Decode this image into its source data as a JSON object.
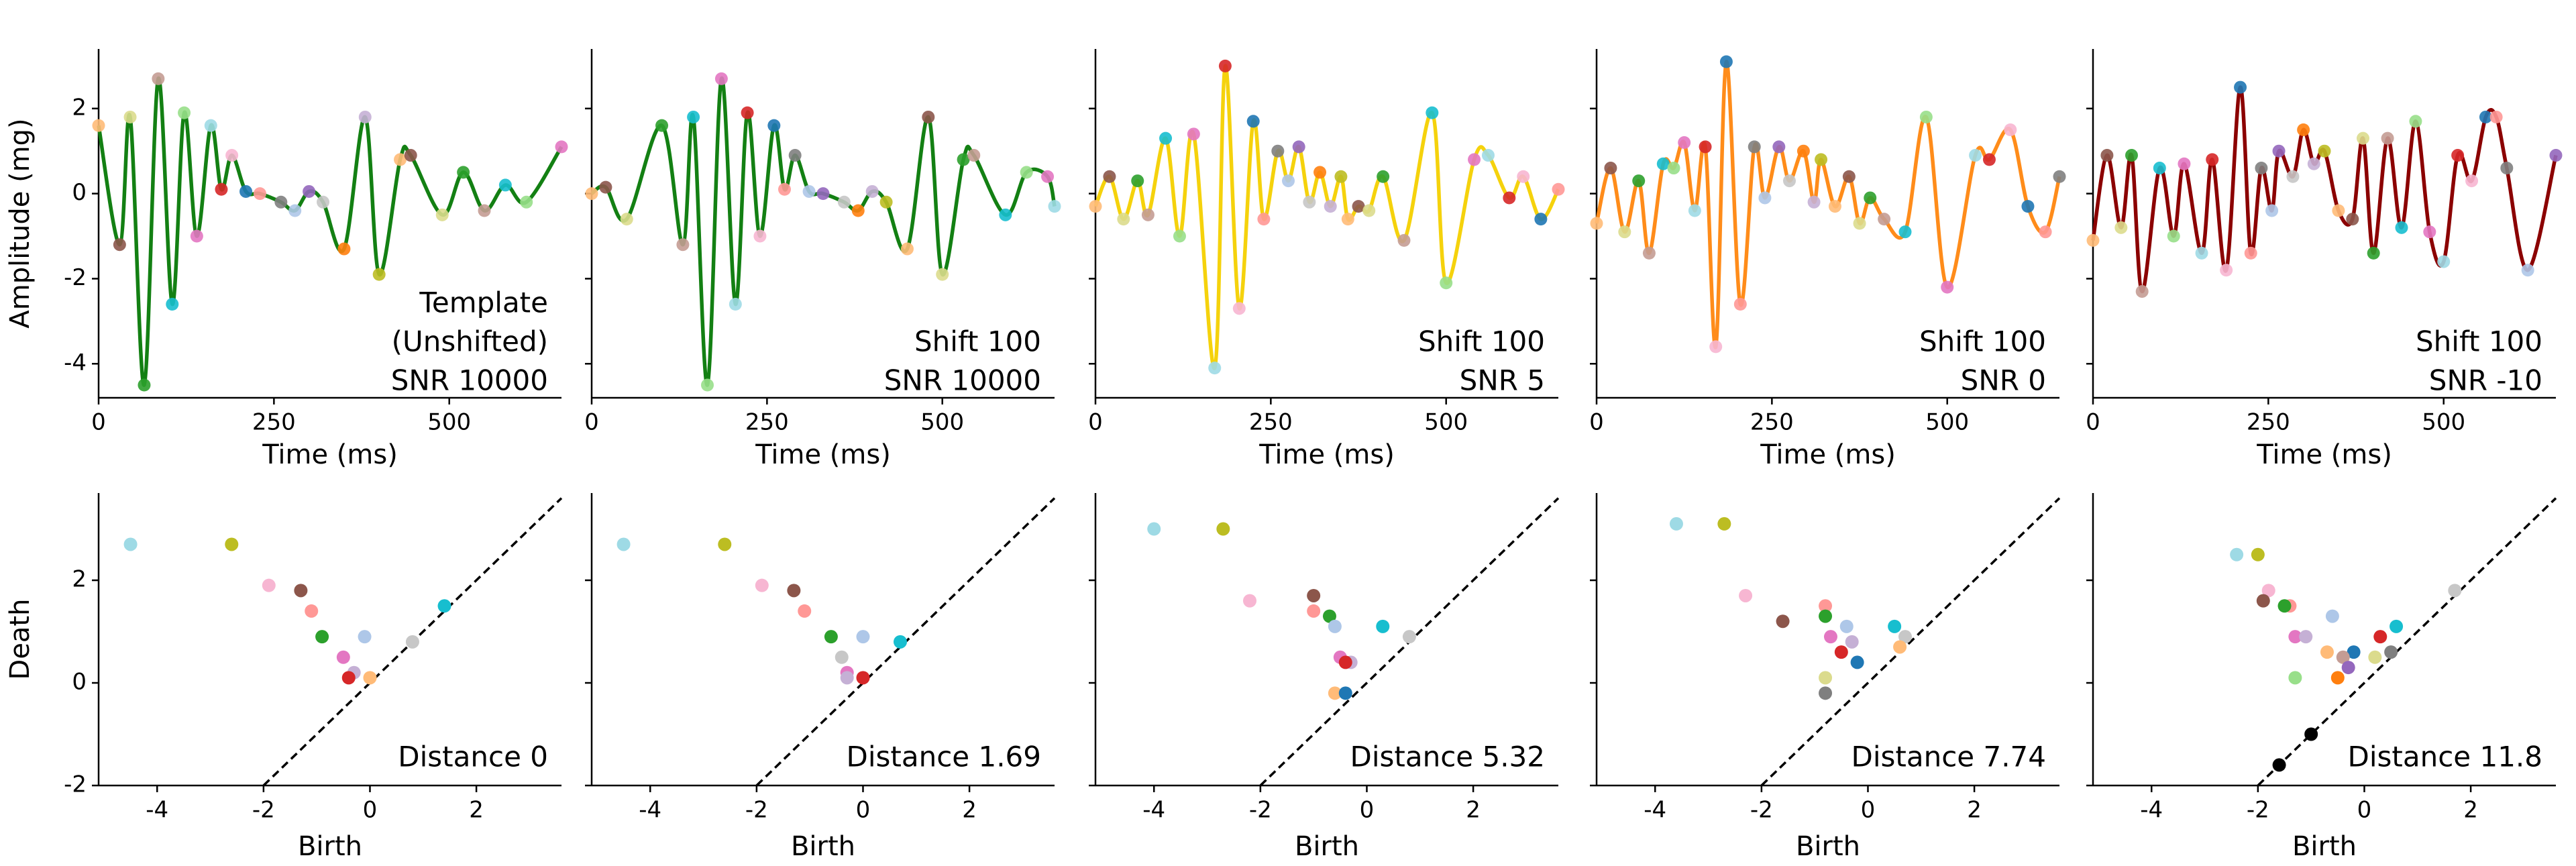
{
  "palette": [
    "#1f77b4",
    "#aec7e8",
    "#ff7f0e",
    "#ffbb78",
    "#2ca02c",
    "#98df8a",
    "#d62728",
    "#ff9896",
    "#9467bd",
    "#c5b0d5",
    "#8c564b",
    "#c49c94",
    "#e377c2",
    "#f7b6d2",
    "#7f7f7f",
    "#c7c7c7",
    "#bcbd22",
    "#dbdb8d",
    "#17becf",
    "#9edae5"
  ],
  "chart_data": [
    {
      "type": "line",
      "color": "#138013",
      "xlabel": "Time (ms)",
      "ylabel": "Amplitude (mg)",
      "annotation": [
        "Template",
        "(Unshifted)",
        "SNR 10000"
      ],
      "xlim": [
        0,
        660
      ],
      "ylim": [
        -4.8,
        3.4
      ],
      "xticks": [
        0,
        250,
        500
      ],
      "yticks": [
        -4,
        -2,
        0,
        2
      ],
      "ytick_labels": true,
      "x": [
        0,
        30,
        45,
        65,
        85,
        105,
        122,
        140,
        160,
        175,
        190,
        210,
        230,
        260,
        280,
        300,
        320,
        350,
        380,
        400,
        430,
        445,
        490,
        520,
        550,
        580,
        610,
        660
      ],
      "values": [
        1.6,
        -1.2,
        1.8,
        -4.5,
        2.7,
        -2.6,
        1.9,
        -1.0,
        1.6,
        0.1,
        0.9,
        0.05,
        0.0,
        -0.2,
        -0.4,
        0.05,
        -0.2,
        -1.3,
        1.8,
        -1.9,
        0.8,
        0.9,
        -0.5,
        0.5,
        -0.4,
        0.2,
        -0.2,
        1.1
      ]
    },
    {
      "type": "line",
      "color": "#138013",
      "xlabel": "Time (ms)",
      "annotation": [
        "Shift 100",
        "SNR 10000"
      ],
      "xlim": [
        0,
        660
      ],
      "ylim": [
        -4.8,
        3.4
      ],
      "xticks": [
        0,
        250,
        500
      ],
      "yticks": [
        -4,
        -2,
        0,
        2
      ],
      "ytick_labels": false,
      "x": [
        0,
        20,
        50,
        100,
        130,
        145,
        165,
        185,
        205,
        222,
        240,
        260,
        275,
        290,
        310,
        330,
        360,
        380,
        400,
        420,
        450,
        480,
        500,
        530,
        545,
        590,
        620,
        650,
        660
      ],
      "values": [
        0.0,
        0.15,
        -0.6,
        1.6,
        -1.2,
        1.8,
        -4.5,
        2.7,
        -2.6,
        1.9,
        -1.0,
        1.6,
        0.1,
        0.9,
        0.05,
        0.0,
        -0.2,
        -0.4,
        0.05,
        -0.2,
        -1.3,
        1.8,
        -1.9,
        0.8,
        0.9,
        -0.5,
        0.5,
        0.4,
        -0.3
      ]
    },
    {
      "type": "line",
      "color": "#f5d20c",
      "xlabel": "Time (ms)",
      "annotation": [
        "Shift 100",
        "SNR 5"
      ],
      "xlim": [
        0,
        660
      ],
      "ylim": [
        -4.8,
        3.4
      ],
      "xticks": [
        0,
        250,
        500
      ],
      "yticks": [
        -4,
        -2,
        0,
        2
      ],
      "ytick_labels": false,
      "x": [
        0,
        20,
        40,
        60,
        75,
        100,
        120,
        140,
        170,
        185,
        205,
        225,
        240,
        260,
        275,
        290,
        305,
        320,
        335,
        350,
        360,
        375,
        390,
        410,
        440,
        480,
        500,
        540,
        560,
        590,
        610,
        635,
        660
      ],
      "values": [
        -0.3,
        0.4,
        -0.6,
        0.3,
        -0.5,
        1.3,
        -1.0,
        1.4,
        -4.1,
        3.0,
        -2.7,
        1.7,
        -0.6,
        1.0,
        0.3,
        1.1,
        -0.2,
        0.5,
        -0.3,
        0.4,
        -0.6,
        -0.3,
        -0.4,
        0.4,
        -1.1,
        1.9,
        -2.1,
        0.8,
        0.9,
        -0.1,
        0.4,
        -0.6,
        0.1
      ]
    },
    {
      "type": "line",
      "color": "#ff8c1a",
      "xlabel": "Time (ms)",
      "annotation": [
        "Shift 100",
        "SNR 0"
      ],
      "xlim": [
        0,
        660
      ],
      "ylim": [
        -4.8,
        3.4
      ],
      "xticks": [
        0,
        250,
        500
      ],
      "yticks": [
        -4,
        -2,
        0,
        2
      ],
      "ytick_labels": false,
      "x": [
        0,
        20,
        40,
        60,
        75,
        95,
        110,
        125,
        140,
        155,
        170,
        185,
        205,
        225,
        240,
        260,
        275,
        295,
        310,
        320,
        340,
        360,
        375,
        390,
        410,
        440,
        470,
        500,
        540,
        560,
        590,
        615,
        640,
        660
      ],
      "values": [
        -0.7,
        0.6,
        -0.9,
        0.3,
        -1.4,
        0.7,
        0.6,
        1.2,
        -0.4,
        1.1,
        -3.6,
        3.1,
        -2.6,
        1.1,
        -0.1,
        1.1,
        0.3,
        1.0,
        -0.2,
        0.8,
        -0.3,
        0.4,
        -0.7,
        -0.1,
        -0.6,
        -0.9,
        1.8,
        -2.2,
        0.9,
        0.8,
        1.5,
        -0.3,
        -0.9,
        0.4
      ]
    },
    {
      "type": "line",
      "color": "#8b0000",
      "xlabel": "Time (ms)",
      "annotation": [
        "Shift 100",
        "SNR -10"
      ],
      "xlim": [
        0,
        660
      ],
      "ylim": [
        -4.8,
        3.4
      ],
      "xticks": [
        0,
        250,
        500
      ],
      "yticks": [
        -4,
        -2,
        0,
        2
      ],
      "ytick_labels": false,
      "x": [
        0,
        20,
        40,
        55,
        70,
        95,
        115,
        130,
        155,
        170,
        190,
        210,
        225,
        240,
        255,
        265,
        285,
        300,
        315,
        330,
        350,
        370,
        385,
        400,
        420,
        440,
        460,
        480,
        500,
        520,
        540,
        560,
        575,
        590,
        620,
        660
      ],
      "values": [
        -1.1,
        0.9,
        -0.8,
        0.9,
        -2.3,
        0.6,
        -1.0,
        0.7,
        -1.4,
        0.8,
        -1.8,
        2.5,
        -1.4,
        0.6,
        -0.4,
        1.0,
        0.4,
        1.5,
        0.7,
        1.0,
        -0.4,
        -0.6,
        1.3,
        -1.4,
        1.3,
        -0.8,
        1.7,
        -0.9,
        -1.6,
        0.9,
        0.3,
        1.8,
        1.8,
        0.6,
        -1.8,
        0.9
      ]
    },
    {
      "type": "scatter",
      "diagonal": true,
      "xlabel": "Birth",
      "ylabel": "Death",
      "annotation": [
        "Distance 0"
      ],
      "xlim": [
        -5.1,
        3.6
      ],
      "ylim": [
        -2,
        3.7
      ],
      "xticks": [
        -4,
        -2,
        0,
        2
      ],
      "yticks": [
        -2,
        0,
        2
      ],
      "ytick_labels": true,
      "x": [
        -4.5,
        -2.6,
        -1.9,
        -1.3,
        -1.1,
        -0.9,
        -0.1,
        1.4,
        0.8,
        -0.5,
        -0.3,
        -0.4,
        0.0
      ],
      "y": [
        2.7,
        2.7,
        1.9,
        1.8,
        1.4,
        0.9,
        0.9,
        1.5,
        0.8,
        0.5,
        0.2,
        0.1,
        0.1
      ]
    },
    {
      "type": "scatter",
      "diagonal": true,
      "xlabel": "Birth",
      "annotation": [
        "Distance 1.69"
      ],
      "xlim": [
        -5.1,
        3.6
      ],
      "ylim": [
        -2,
        3.7
      ],
      "xticks": [
        -4,
        -2,
        0,
        2
      ],
      "yticks": [
        -2,
        0,
        2
      ],
      "ytick_labels": false,
      "x": [
        -4.5,
        -2.6,
        -1.9,
        -1.3,
        -1.1,
        -0.6,
        0.0,
        0.7,
        -0.4,
        -0.3,
        -0.3,
        0.0
      ],
      "y": [
        2.7,
        2.7,
        1.9,
        1.8,
        1.4,
        0.9,
        0.9,
        0.8,
        0.5,
        0.2,
        0.1,
        0.1
      ]
    },
    {
      "type": "scatter",
      "diagonal": true,
      "xlabel": "Birth",
      "annotation": [
        "Distance 5.32"
      ],
      "xlim": [
        -5.1,
        3.6
      ],
      "ylim": [
        -2,
        3.7
      ],
      "xticks": [
        -4,
        -2,
        0,
        2
      ],
      "yticks": [
        -2,
        0,
        2
      ],
      "ytick_labels": false,
      "x": [
        -4.0,
        -2.7,
        -2.2,
        -1.0,
        -1.0,
        -0.7,
        -0.6,
        0.3,
        0.8,
        -0.5,
        -0.3,
        -0.4,
        -0.6,
        -0.4
      ],
      "y": [
        3.0,
        3.0,
        1.6,
        1.7,
        1.4,
        1.3,
        1.1,
        1.1,
        0.9,
        0.5,
        0.4,
        0.4,
        -0.2,
        -0.2
      ]
    },
    {
      "type": "scatter",
      "diagonal": true,
      "xlabel": "Birth",
      "annotation": [
        "Distance 7.74"
      ],
      "xlim": [
        -5.1,
        3.6
      ],
      "ylim": [
        -2,
        3.7
      ],
      "xticks": [
        -4,
        -2,
        0,
        2
      ],
      "yticks": [
        -2,
        0,
        2
      ],
      "ytick_labels": false,
      "x": [
        -3.6,
        -2.7,
        -2.3,
        -1.6,
        -0.8,
        -0.8,
        -0.4,
        0.5,
        0.7,
        -0.7,
        -0.3,
        -0.5,
        0.6,
        -0.2,
        -0.8,
        -0.8
      ],
      "y": [
        3.1,
        3.1,
        1.7,
        1.2,
        1.5,
        1.3,
        1.1,
        1.1,
        0.9,
        0.9,
        0.8,
        0.6,
        0.7,
        0.4,
        0.1,
        -0.2
      ]
    },
    {
      "type": "scatter",
      "diagonal": true,
      "xlabel": "Birth",
      "annotation": [
        "Distance 11.8"
      ],
      "xlim": [
        -5.1,
        3.6
      ],
      "ylim": [
        -2,
        3.7
      ],
      "xticks": [
        -4,
        -2,
        0,
        2
      ],
      "yticks": [
        -2,
        0,
        2
      ],
      "ytick_labels": false,
      "x": [
        -2.4,
        -2.0,
        -1.8,
        -1.9,
        -1.4,
        -1.5,
        -0.6,
        0.6,
        1.7,
        -1.3,
        -1.1,
        0.3,
        -0.7,
        -0.2,
        0.2,
        0.5,
        -0.4,
        -0.3,
        -1.3,
        -0.5,
        -1.0,
        -1.6
      ],
      "y": [
        2.5,
        2.5,
        1.8,
        1.6,
        1.5,
        1.5,
        1.3,
        1.1,
        1.8,
        0.9,
        0.9,
        0.9,
        0.6,
        0.6,
        0.5,
        0.6,
        0.5,
        0.3,
        0.1,
        0.1,
        -1.0,
        -1.6
      ]
    }
  ]
}
